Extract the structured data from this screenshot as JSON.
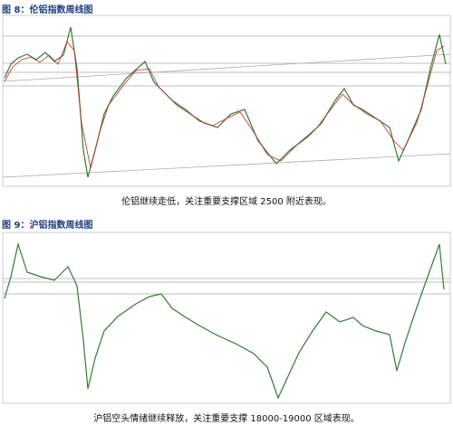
{
  "figures": [
    {
      "title": "图 8：伦铝指数周线图",
      "caption": "伦铝继续走低，关注重要支撑区域 2500 附近表现。"
    },
    {
      "title": "图 9：沪铝指数周线图",
      "caption": "沪铝空头情绪继续释放，关注重要支撑 18000-19000 区域表现。"
    }
  ]
}
